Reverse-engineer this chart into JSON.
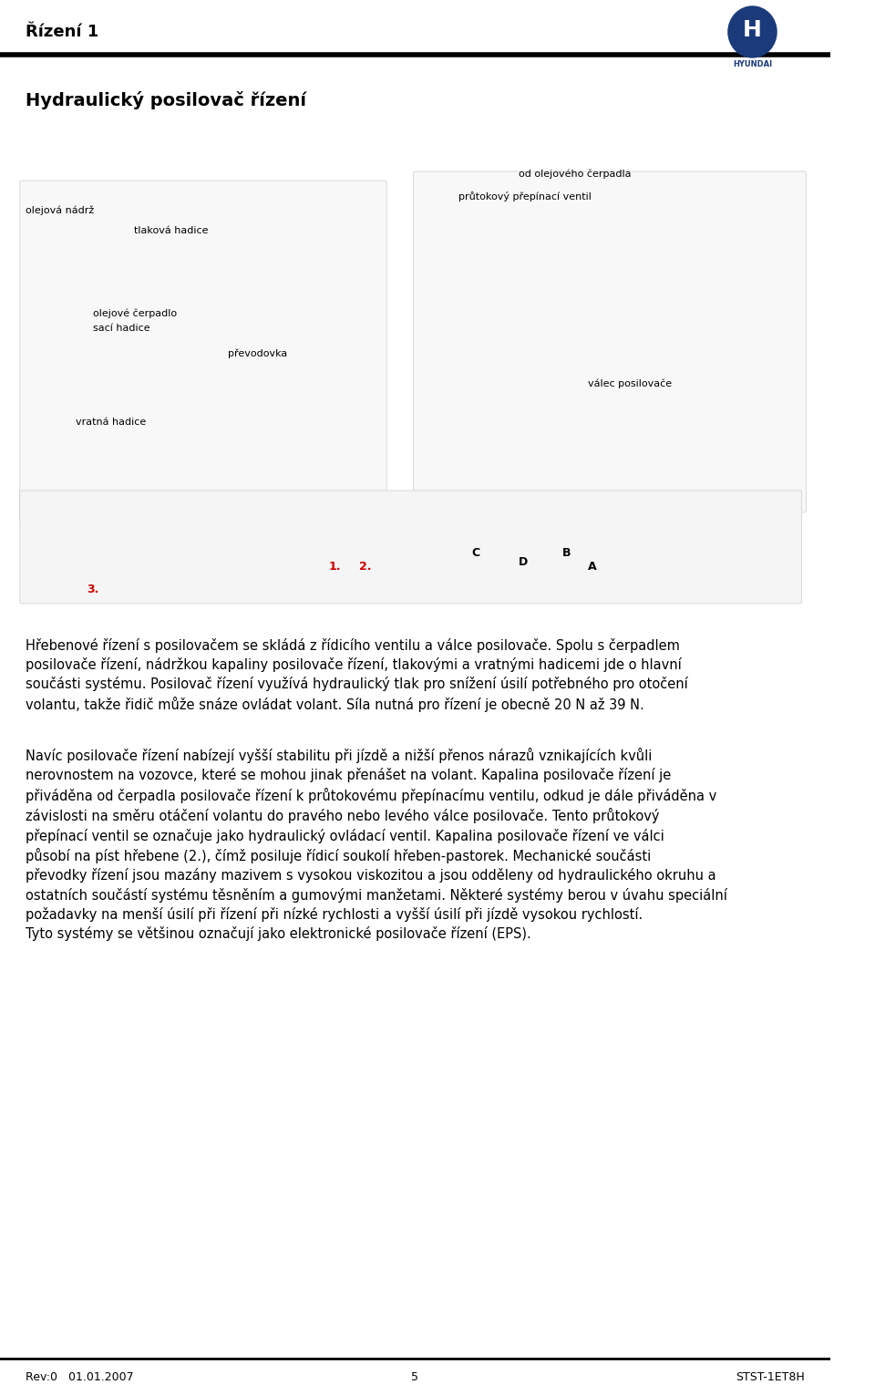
{
  "page_title": "Řízení 1",
  "section_title": "Hydraulický posilovač řízení",
  "body_text": [
    "Hřebenové řízení s posilovačem se skládá z řídicího ventilu a válce posilovače. Spolu s čerpadlem posilovače řízení, nádržkou kapaliny posilovače řízení, tlakovými a vratnými hadicemi jde o hlavní součásti systému. Posilovač řízení využívá hydraulický tlak pro snížení úsilí potřebného pro otočení volantu, takže řidič může snáze ovládat volant. Síla nutná pro řízení je obecně 20 N až 39 N.",
    "Navíc posilovače řízení nabízejí vyšší stabilitu při jízdě a nižší přenos nárazů vznikajících kvůli nerovnostem na vozovce, které se mohou jinak přenášet na volant. Kapalina posilovače řízení je přiváděna od čerpadla posilovače řízení k průtokovému přepínacímu ventilu, odkud je dále přiváděna v závislosti na směru otáčení volantu do pravého nebo levého válce posilovače. Tento průtokový přepínací ventil se označuje jako hydraulický ovládací ventil. Kapalina posilovače řízení ve válci působí na píst hřebene (2.), čímž posiluje řídicí soukolí hřeben-pastorek. Mechanické součásti převodky řízení jsou mazány mazivem s vysokou viskozitou a jsou odděleny od hydraulického okruhu a ostatních součástí systému těsněním a gumovými manžetami. Některé systémy berou v úvahu speciální požadavky na menší úsilí při řízení při nízké rychlosti a vyšší úsilí při jízdě vysokou rychlostí. Tyto systémy se většinou označují jako elektronické posilovače řízení (EPS)."
  ],
  "footer_left": "Rev:0   01.01.2007",
  "footer_center": "5",
  "footer_right": "STST-1ET8H",
  "bg_color": "#ffffff",
  "text_color": "#000000",
  "header_line_color": "#000000",
  "footer_line_color": "#000000",
  "title_fontsize": 13,
  "section_title_fontsize": 14,
  "body_fontsize": 10.5,
  "footer_fontsize": 9
}
